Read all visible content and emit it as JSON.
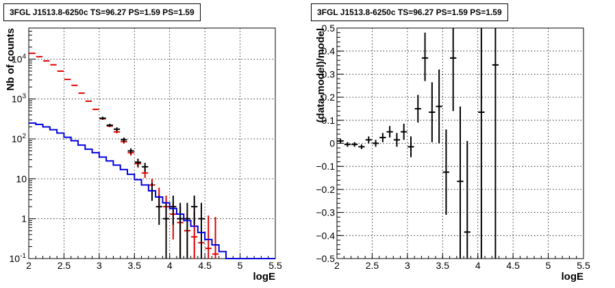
{
  "chart_data": [
    {
      "type": "line",
      "title": "3FGL J1513.8-6250c TS=96.27 PS=1.59 PS=1.59",
      "xlabel": "logE",
      "ylabel": "Nb of counts",
      "xlim": [
        2,
        5.5
      ],
      "ylim": [
        0.1,
        60000
      ],
      "log_y": true,
      "grid": true,
      "x_ticks": [
        "2",
        "2.5",
        "3",
        "3.5",
        "4",
        "4.5",
        "5",
        "5.5"
      ],
      "y_ticks": [
        "10^-1",
        "1",
        "10",
        "10^2",
        "10^3",
        "10^4"
      ],
      "y_tick_values": [
        0.1,
        1,
        10,
        100,
        1000,
        10000
      ],
      "series": [
        {
          "color": "#e00000",
          "kind": "points",
          "points": [
            {
              "x": 2.05,
              "y": 14000,
              "lo": 13800,
              "hi": 14200
            },
            {
              "x": 2.15,
              "y": 11500,
              "lo": 11300,
              "hi": 11700
            },
            {
              "x": 2.25,
              "y": 9000,
              "lo": 8850,
              "hi": 9150
            },
            {
              "x": 2.35,
              "y": 7200,
              "lo": 7050,
              "hi": 7350
            },
            {
              "x": 2.45,
              "y": 5000,
              "lo": 4900,
              "hi": 5100
            },
            {
              "x": 2.55,
              "y": 3100,
              "lo": 3020,
              "hi": 3180
            },
            {
              "x": 2.65,
              "y": 2200,
              "lo": 2140,
              "hi": 2260
            },
            {
              "x": 2.75,
              "y": 1400,
              "lo": 1360,
              "hi": 1440
            },
            {
              "x": 2.85,
              "y": 880,
              "lo": 850,
              "hi": 910
            },
            {
              "x": 2.95,
              "y": 550,
              "lo": 530,
              "hi": 570
            },
            {
              "x": 3.05,
              "y": 320,
              "lo": 305,
              "hi": 335
            },
            {
              "x": 3.15,
              "y": 210,
              "lo": 198,
              "hi": 222
            },
            {
              "x": 3.25,
              "y": 150,
              "lo": 138,
              "hi": 162
            },
            {
              "x": 3.35,
              "y": 85,
              "lo": 76,
              "hi": 94
            },
            {
              "x": 3.45,
              "y": 45,
              "lo": 38,
              "hi": 52
            },
            {
              "x": 3.55,
              "y": 24,
              "lo": 19,
              "hi": 29
            },
            {
              "x": 3.65,
              "y": 14,
              "lo": 10.5,
              "hi": 18
            },
            {
              "x": 3.75,
              "y": 7,
              "lo": 4.5,
              "hi": 10
            },
            {
              "x": 3.85,
              "y": 3.5,
              "lo": 1.8,
              "hi": 6
            },
            {
              "x": 3.95,
              "y": 2,
              "lo": 0.6,
              "hi": 3.8
            },
            {
              "x": 4.05,
              "y": 1.3,
              "lo": 0.3,
              "hi": 2.7
            },
            {
              "x": 4.15,
              "y": 0.8,
              "lo": 0.1,
              "hi": 2
            },
            {
              "x": 4.25,
              "y": 0.5,
              "lo": 0.1,
              "hi": 1.7
            },
            {
              "x": 4.35,
              "y": 0.35,
              "lo": 0.1,
              "hi": 1.5
            },
            {
              "x": 4.45,
              "y": 0.25,
              "lo": 0.1,
              "hi": 1.3
            },
            {
              "x": 4.55,
              "y": 0.18,
              "lo": 0.1,
              "hi": 1.2
            },
            {
              "x": 4.65,
              "y": 0.13,
              "lo": 0.1,
              "hi": 1.1
            }
          ]
        },
        {
          "color": "#000000",
          "kind": "points",
          "points": [
            {
              "x": 3.05,
              "y": 330,
              "lo": 300,
              "hi": 360
            },
            {
              "x": 3.15,
              "y": 220,
              "lo": 200,
              "hi": 240
            },
            {
              "x": 3.25,
              "y": 175,
              "lo": 155,
              "hi": 195
            },
            {
              "x": 3.35,
              "y": 95,
              "lo": 82,
              "hi": 108
            },
            {
              "x": 3.45,
              "y": 50,
              "lo": 42,
              "hi": 58
            },
            {
              "x": 3.55,
              "y": 26,
              "lo": 20,
              "hi": 32
            },
            {
              "x": 3.65,
              "y": 20,
              "lo": 15,
              "hi": 25
            },
            {
              "x": 3.75,
              "y": 5,
              "lo": 2.8,
              "hi": 8
            },
            {
              "x": 3.85,
              "y": 2,
              "lo": 0.7,
              "hi": 3.8
            },
            {
              "x": 3.95,
              "y": 1,
              "lo": 0.1,
              "hi": 2.5
            },
            {
              "x": 4.05,
              "y": 2,
              "lo": 0.7,
              "hi": 3.8
            },
            {
              "x": 4.15,
              "y": 1,
              "lo": 0.1,
              "hi": 2.5
            },
            {
              "x": 4.25,
              "y": 1,
              "lo": 0.1,
              "hi": 2.5
            },
            {
              "x": 4.35,
              "y": 2,
              "lo": 0.7,
              "hi": 3.8
            },
            {
              "x": 4.45,
              "y": 1,
              "lo": 0.1,
              "hi": 2.5
            }
          ]
        },
        {
          "color": "#0000dd",
          "kind": "step",
          "x_edges": [
            2.0,
            2.1,
            2.2,
            2.3,
            2.4,
            2.5,
            2.6,
            2.7,
            2.8,
            2.9,
            3.0,
            3.1,
            3.2,
            3.3,
            3.4,
            3.5,
            3.6,
            3.7,
            3.8,
            3.9,
            4.0,
            4.1,
            4.2,
            4.3,
            4.4,
            4.5,
            4.6,
            4.7,
            4.8,
            4.9,
            5.0,
            5.1,
            5.2,
            5.3,
            5.4,
            5.5
          ],
          "values": [
            250,
            230,
            200,
            170,
            140,
            110,
            90,
            70,
            55,
            45,
            35,
            28,
            22,
            17,
            13,
            9.5,
            7,
            5,
            3.5,
            2.5,
            1.8,
            1.3,
            0.9,
            0.65,
            0.45,
            0.3,
            0.22,
            0.15,
            0.1,
            0.1,
            0.1,
            0.1,
            0.1,
            0.1,
            0.1
          ]
        }
      ]
    },
    {
      "type": "scatter",
      "title": "3FGL J1513.8-6250c TS=96.27 PS=1.59 PS=1.59",
      "xlabel": "logE",
      "ylabel": "(data-model)/model",
      "xlim": [
        2,
        5.5
      ],
      "ylim": [
        -0.5,
        0.5
      ],
      "grid": true,
      "x_ticks": [
        "2",
        "2.5",
        "3",
        "3.5",
        "4",
        "4.5",
        "5",
        "5.5"
      ],
      "y_ticks": [
        "−0.5",
        "−0.4",
        "−0.3",
        "−0.2",
        "−0.1",
        "0",
        "0.1",
        "0.2",
        "0.3",
        "0.4",
        "0.5"
      ],
      "y_tick_values": [
        -0.5,
        -0.4,
        -0.3,
        -0.2,
        -0.1,
        0,
        0.1,
        0.2,
        0.3,
        0.4,
        0.5
      ],
      "series": [
        {
          "color": "#000000",
          "kind": "points",
          "points": [
            {
              "x": 2.05,
              "y": 0.01,
              "lo": 0.0,
              "hi": 0.02
            },
            {
              "x": 2.15,
              "y": -0.005,
              "lo": -0.015,
              "hi": 0.005
            },
            {
              "x": 2.25,
              "y": -0.005,
              "lo": -0.015,
              "hi": 0.005
            },
            {
              "x": 2.35,
              "y": -0.015,
              "lo": -0.025,
              "hi": -0.005
            },
            {
              "x": 2.45,
              "y": 0.015,
              "lo": 0.0,
              "hi": 0.03
            },
            {
              "x": 2.55,
              "y": 0.0,
              "lo": -0.015,
              "hi": 0.015
            },
            {
              "x": 2.65,
              "y": 0.025,
              "lo": 0.005,
              "hi": 0.045
            },
            {
              "x": 2.75,
              "y": 0.05,
              "lo": 0.025,
              "hi": 0.075
            },
            {
              "x": 2.85,
              "y": 0.015,
              "lo": -0.015,
              "hi": 0.045
            },
            {
              "x": 2.95,
              "y": 0.05,
              "lo": 0.015,
              "hi": 0.085
            },
            {
              "x": 3.05,
              "y": -0.015,
              "lo": -0.06,
              "hi": 0.03
            },
            {
              "x": 3.15,
              "y": 0.15,
              "lo": 0.09,
              "hi": 0.21
            },
            {
              "x": 3.25,
              "y": 0.37,
              "lo": 0.27,
              "hi": 0.48
            },
            {
              "x": 3.35,
              "y": 0.135,
              "lo": 0.005,
              "hi": 0.265
            },
            {
              "x": 3.45,
              "y": 0.16,
              "lo": 0.0,
              "hi": 0.32
            },
            {
              "x": 3.55,
              "y": -0.125,
              "lo": -0.31,
              "hi": 0.06
            },
            {
              "x": 3.65,
              "y": 0.37,
              "lo": 0.14,
              "hi": 0.5
            },
            {
              "x": 3.75,
              "y": -0.165,
              "lo": -0.5,
              "hi": 0.16
            },
            {
              "x": 3.85,
              "y": -0.385,
              "lo": -0.5,
              "hi": 0.01
            },
            {
              "x": 4.05,
              "y": 0.135,
              "lo": -0.5,
              "hi": 0.5
            },
            {
              "x": 4.25,
              "y": 0.34,
              "lo": -0.5,
              "hi": 0.5
            }
          ]
        }
      ]
    }
  ]
}
